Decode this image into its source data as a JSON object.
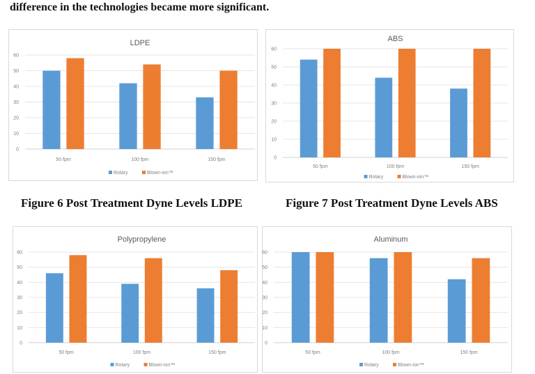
{
  "intro_text": "difference in the technologies became more significant.",
  "captions": [
    "Figure 6 Post Treatment Dyne Levels LDPE",
    "Figure 7 Post Treatment Dyne Levels ABS"
  ],
  "colors": {
    "rotary": "#5b9bd5",
    "blown_ion": "#ed7d31",
    "grid": "#e4e4e4",
    "text": "#7f7f7f"
  },
  "chart_data": [
    {
      "type": "bar",
      "title": "LDPE",
      "categories": [
        "50 fpm",
        "100 fpm",
        "150 fpm"
      ],
      "ylim": [
        0,
        60
      ],
      "yticks": [
        "0",
        "10",
        "20",
        "30",
        "40",
        "50",
        "60"
      ],
      "grid": true,
      "legend": "bottom",
      "series": [
        {
          "name": "Rotary",
          "values": [
            50,
            42,
            33
          ]
        },
        {
          "name": "Blown-ion™",
          "values": [
            58,
            54,
            50
          ]
        }
      ]
    },
    {
      "type": "bar",
      "title": "ABS",
      "categories": [
        "50 fpm",
        "100 fpm",
        "150 fpm"
      ],
      "ylim": [
        0,
        60
      ],
      "yticks": [
        "0",
        "10",
        "20",
        "30",
        "40",
        "50",
        "60"
      ],
      "grid": true,
      "legend": "bottom",
      "series": [
        {
          "name": "Rotary",
          "values": [
            54,
            44,
            38
          ]
        },
        {
          "name": "Blown-ion™",
          "values": [
            60,
            60,
            60
          ]
        }
      ]
    },
    {
      "type": "bar",
      "title": "Polypropylene",
      "categories": [
        "50 fpm",
        "100 fpm",
        "150 fpm"
      ],
      "ylim": [
        0,
        60
      ],
      "yticks": [
        "0",
        "10",
        "20",
        "30",
        "40",
        "50",
        "60"
      ],
      "grid": true,
      "legend": "bottom",
      "series": [
        {
          "name": "Rotary",
          "values": [
            46,
            39,
            36
          ]
        },
        {
          "name": "Blown-ion™",
          "values": [
            58,
            56,
            48
          ]
        }
      ]
    },
    {
      "type": "bar",
      "title": "Aluminum",
      "categories": [
        "50 fpm",
        "100 fpm",
        "150 fpm"
      ],
      "ylim": [
        0,
        60
      ],
      "yticks": [
        "0",
        "10",
        "20",
        "30",
        "40",
        "50",
        "60"
      ],
      "grid": true,
      "legend": "bottom",
      "series": [
        {
          "name": "Rotary",
          "values": [
            60,
            56,
            42
          ]
        },
        {
          "name": "Blown-ion™",
          "values": [
            60,
            60,
            56
          ]
        }
      ]
    }
  ]
}
